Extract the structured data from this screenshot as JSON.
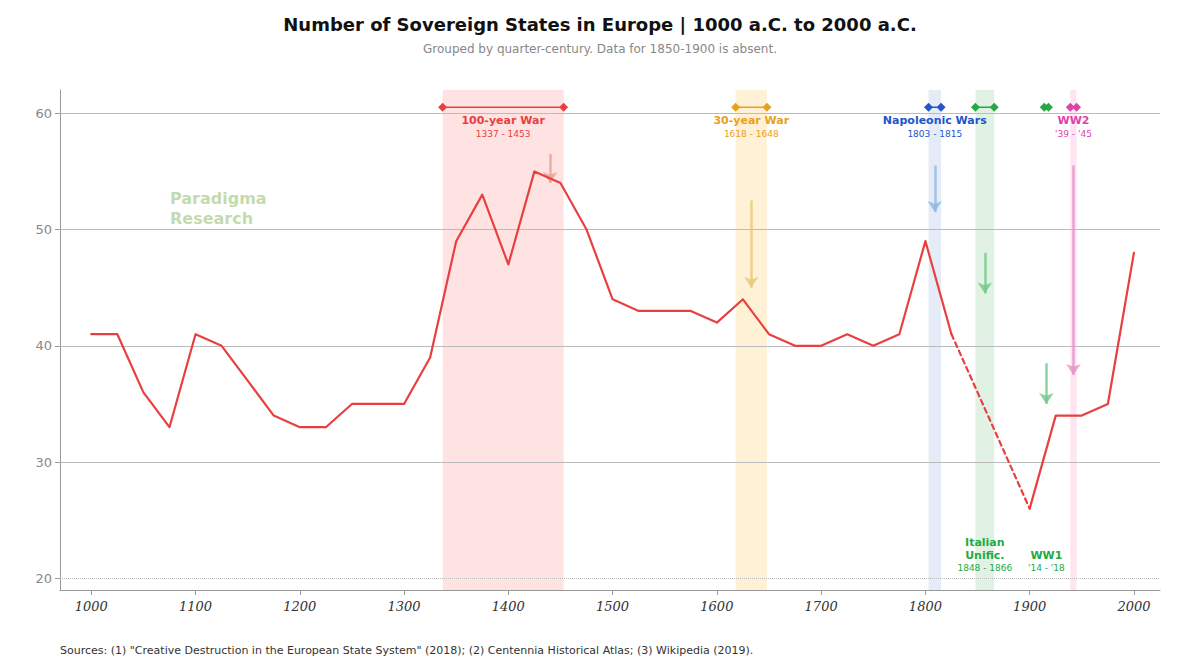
{
  "chart_data": {
    "type": "line",
    "title": "Number of Sovereign States in Europe | 1000 a.C. to 2000 a.C.",
    "subtitle": "Grouped by quarter-century. Data for 1850-1900 is absent.",
    "source": "Sources: (1) \"Creative Destruction in the European State System\" (2018); (2) Centennia Historical Atlas; (3) Wikipedia (2019).",
    "watermark": [
      "Paradigma",
      "Research"
    ],
    "series": [
      {
        "x": [
          1000,
          1025,
          1050,
          1075,
          1100,
          1125,
          1150,
          1175,
          1200,
          1225,
          1250,
          1275,
          1300,
          1325,
          1350,
          1375,
          1400,
          1425,
          1450,
          1475,
          1500,
          1525,
          1550,
          1575,
          1600,
          1625,
          1650,
          1675,
          1700,
          1725,
          1750,
          1775,
          1800,
          1825
        ],
        "values": [
          41,
          41,
          36,
          33,
          41,
          40,
          37,
          34,
          33,
          33,
          35,
          35,
          35,
          39,
          49,
          53,
          47,
          55,
          54,
          50,
          44,
          43,
          43,
          43,
          42,
          44,
          41,
          40,
          40,
          41,
          40,
          41,
          49,
          41
        ],
        "color": "#e84040",
        "line_style": "solid"
      },
      {
        "x": [
          1825,
          1900
        ],
        "values": [
          41,
          26
        ],
        "color": "#e84040",
        "line_style": "dashed"
      },
      {
        "x": [
          1900,
          1925,
          1950,
          1975,
          2000
        ],
        "values": [
          26,
          34,
          34,
          35,
          48
        ],
        "color": "#e84040",
        "line_style": "solid"
      }
    ],
    "xlim": [
      970,
      2025
    ],
    "xticks": [
      1000,
      1100,
      1200,
      1300,
      1400,
      1500,
      1600,
      1700,
      1800,
      1900,
      2000
    ],
    "ylim": [
      19,
      62
    ],
    "yticks": [
      20,
      30,
      40,
      50,
      60
    ],
    "grid": true,
    "wars_top": [
      {
        "name": "100-year War",
        "dates": "1337 - 1453",
        "start": 1337,
        "end": 1453,
        "color": "#e84040",
        "shade_color": "#ffcccc",
        "arrow_color": "#e8a090",
        "arrow": {
          "x": 1440,
          "from": 56.5,
          "to": 54.0
        }
      },
      {
        "name": "30-year War",
        "dates": "1618 - 1648",
        "start": 1618,
        "end": 1648,
        "color": "#e8a020",
        "shade_color": "#ffe5b4",
        "arrow_color": "#e8c878",
        "arrow": {
          "x": 1633,
          "from": 52.5,
          "to": 45.0
        }
      },
      {
        "name": "Napoleonic Wars",
        "dates": "1803 - 1815",
        "start": 1803,
        "end": 1815,
        "color": "#2255cc",
        "shade_color": "#d0ddf0",
        "arrow_color": "#90b8e0",
        "arrow": {
          "x": 1809,
          "from": 55.5,
          "to": 51.5
        }
      },
      {
        "name": "WW2",
        "dates": "'39 - '45",
        "start": 1939,
        "end": 1945,
        "color": "#dd44aa",
        "shade_color": "#ffd0e8",
        "arrow_color": "#e890c8",
        "arrow": {
          "x": 1942,
          "from": 55.5,
          "to": 37.5
        }
      }
    ],
    "wars_bottom": [
      {
        "name": "Italian\nUnific.",
        "dates": "1848 - 1866",
        "start": 1848,
        "end": 1866,
        "color": "#22aa44",
        "shade_color": "#c8e8d0",
        "arrow_color": "#70c888",
        "arrow": {
          "x": 1857,
          "from": 48.0,
          "to": 44.5
        }
      },
      {
        "name": "WW1",
        "dates": "'14 - '18",
        "start": 1914,
        "end": 1918,
        "color": "#22aa44",
        "arrow_color": "#70c888",
        "arrow": {
          "x": 1916,
          "from": 38.5,
          "to": 35.0
        }
      }
    ]
  }
}
